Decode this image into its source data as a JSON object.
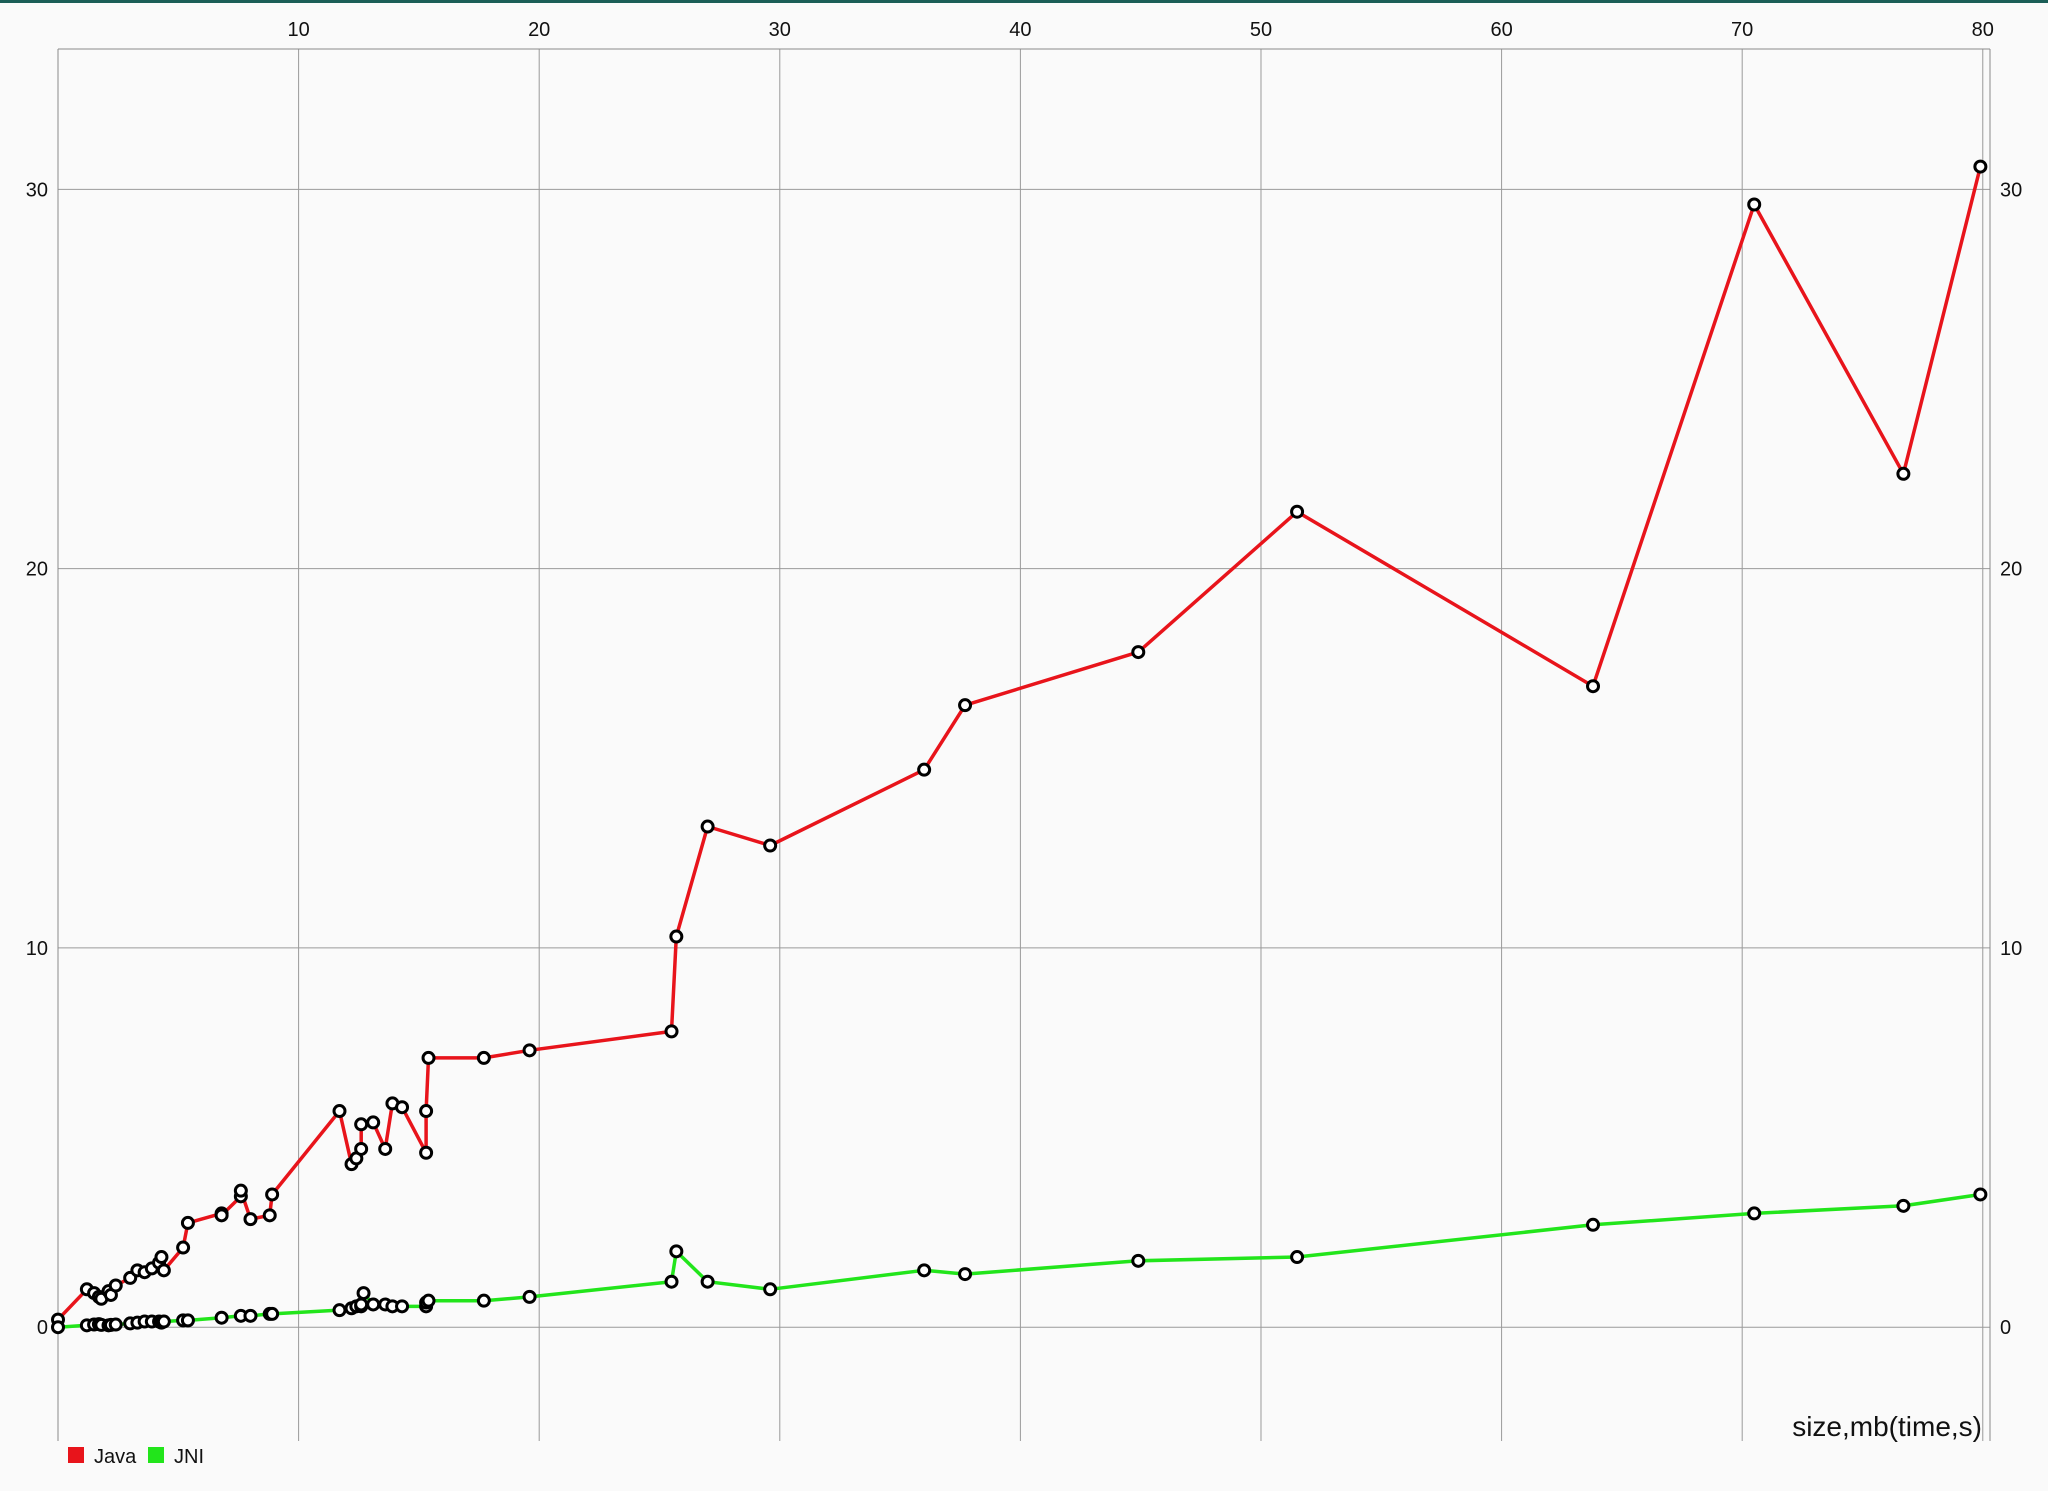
{
  "chart_data": {
    "type": "line",
    "title": "",
    "xlabel": "size,mb(time,s)",
    "ylabel": "",
    "xlim": [
      0,
      80.3
    ],
    "ylim": [
      -3,
      33.7
    ],
    "x_ticks": [
      10,
      20,
      30,
      40,
      50,
      60,
      70,
      80
    ],
    "y_ticks": [
      0,
      10,
      20,
      30
    ],
    "x_tick_labels": [
      "10",
      "20",
      "30",
      "40",
      "50",
      "60",
      "70",
      "80"
    ],
    "y_tick_labels": [
      "0",
      "10",
      "20",
      "30"
    ],
    "grid": true,
    "legend_position": "bottom-left",
    "series": [
      {
        "name": "Java",
        "color": "#e8141b",
        "points": [
          [
            0.0,
            0.2
          ],
          [
            1.2,
            1.0
          ],
          [
            1.5,
            0.9
          ],
          [
            1.7,
            0.8
          ],
          [
            1.8,
            0.75
          ],
          [
            2.1,
            0.95
          ],
          [
            2.2,
            0.85
          ],
          [
            2.4,
            1.1
          ],
          [
            3.0,
            1.3
          ],
          [
            3.3,
            1.5
          ],
          [
            3.6,
            1.45
          ],
          [
            3.9,
            1.55
          ],
          [
            4.2,
            1.7
          ],
          [
            4.3,
            1.85
          ],
          [
            4.4,
            1.5
          ],
          [
            5.2,
            2.1
          ],
          [
            5.4,
            2.75
          ],
          [
            6.8,
            3.0
          ],
          [
            6.8,
            2.95
          ],
          [
            7.6,
            3.45
          ],
          [
            7.6,
            3.6
          ],
          [
            8.0,
            2.85
          ],
          [
            8.8,
            2.95
          ],
          [
            8.9,
            3.5
          ],
          [
            11.7,
            5.7
          ],
          [
            12.2,
            4.3
          ],
          [
            12.4,
            4.45
          ],
          [
            12.6,
            4.7
          ],
          [
            12.6,
            5.35
          ],
          [
            13.1,
            5.4
          ],
          [
            13.6,
            4.7
          ],
          [
            13.9,
            5.9
          ],
          [
            14.3,
            5.8
          ],
          [
            15.3,
            4.6
          ],
          [
            15.3,
            5.7
          ],
          [
            15.4,
            7.1
          ],
          [
            17.7,
            7.1
          ],
          [
            19.6,
            7.3
          ],
          [
            25.5,
            7.8
          ],
          [
            25.7,
            10.3
          ],
          [
            27.0,
            13.2
          ],
          [
            29.6,
            12.7
          ],
          [
            36.0,
            14.7
          ],
          [
            37.7,
            16.4
          ],
          [
            44.9,
            17.8
          ],
          [
            51.5,
            21.5
          ],
          [
            63.8,
            16.9
          ],
          [
            70.5,
            29.6
          ],
          [
            76.7,
            22.5
          ],
          [
            79.9,
            30.6
          ]
        ]
      },
      {
        "name": "JNI",
        "color": "#22e51b",
        "points": [
          [
            0.0,
            0.0
          ],
          [
            1.2,
            0.05
          ],
          [
            1.5,
            0.07
          ],
          [
            1.7,
            0.08
          ],
          [
            1.8,
            0.06
          ],
          [
            2.1,
            0.05
          ],
          [
            2.2,
            0.06
          ],
          [
            2.4,
            0.07
          ],
          [
            3.0,
            0.1
          ],
          [
            3.3,
            0.12
          ],
          [
            3.6,
            0.15
          ],
          [
            3.9,
            0.15
          ],
          [
            4.2,
            0.15
          ],
          [
            4.3,
            0.12
          ],
          [
            4.4,
            0.15
          ],
          [
            5.2,
            0.18
          ],
          [
            5.4,
            0.18
          ],
          [
            6.8,
            0.25
          ],
          [
            7.6,
            0.3
          ],
          [
            8.0,
            0.3
          ],
          [
            8.8,
            0.35
          ],
          [
            8.9,
            0.35
          ],
          [
            11.7,
            0.45
          ],
          [
            12.2,
            0.5
          ],
          [
            12.4,
            0.55
          ],
          [
            12.6,
            0.55
          ],
          [
            12.6,
            0.6
          ],
          [
            12.7,
            0.9
          ],
          [
            13.1,
            0.6
          ],
          [
            13.6,
            0.6
          ],
          [
            13.9,
            0.55
          ],
          [
            14.3,
            0.55
          ],
          [
            15.3,
            0.55
          ],
          [
            15.3,
            0.65
          ],
          [
            15.4,
            0.7
          ],
          [
            17.7,
            0.7
          ],
          [
            19.6,
            0.8
          ],
          [
            25.5,
            1.2
          ],
          [
            25.7,
            2.0
          ],
          [
            27.0,
            1.2
          ],
          [
            29.6,
            1.0
          ],
          [
            36.0,
            1.5
          ],
          [
            37.7,
            1.4
          ],
          [
            44.9,
            1.75
          ],
          [
            51.5,
            1.85
          ],
          [
            63.8,
            2.7
          ],
          [
            70.5,
            3.0
          ],
          [
            76.7,
            3.2
          ],
          [
            79.9,
            3.5
          ]
        ]
      }
    ]
  }
}
